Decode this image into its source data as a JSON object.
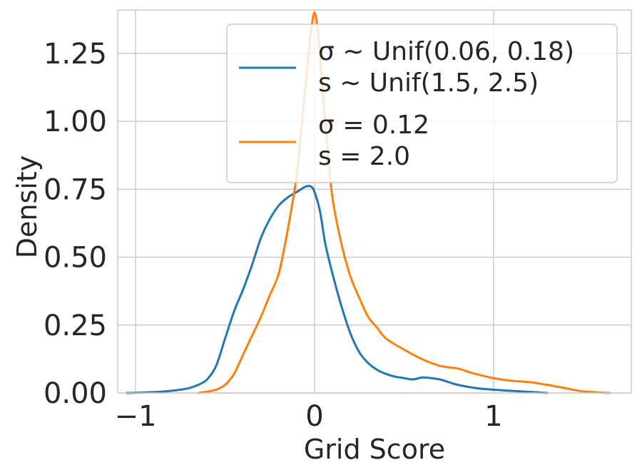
{
  "chart_data": {
    "type": "line",
    "xlabel": "Grid Score",
    "ylabel": "Density",
    "xlim": [
      -1.1,
      1.77
    ],
    "ylim": [
      0,
      1.41
    ],
    "xticks": [
      -1,
      0,
      1
    ],
    "xtick_labels": [
      "−1",
      "0",
      "1"
    ],
    "yticks": [
      0,
      0.25,
      0.5,
      0.75,
      1.0,
      1.25
    ],
    "ytick_labels": [
      "0.00",
      "0.25",
      "0.50",
      "0.75",
      "1.00",
      "1.25"
    ],
    "grid": true,
    "legend": {
      "position": "top-right",
      "entries": [
        {
          "lines": [
            "σ ∼  Unif(0.06, 0.18)",
            "s ∼  Unif(1.5, 2.5)"
          ],
          "color": "#1f77b4"
        },
        {
          "lines": [
            "σ = 0.12",
            "s = 2.0"
          ],
          "color": "#ff7f0e"
        }
      ]
    },
    "series": [
      {
        "color": "#1f77b4",
        "x": [
          -1.05,
          -0.95,
          -0.85,
          -0.75,
          -0.7,
          -0.65,
          -0.6,
          -0.55,
          -0.5,
          -0.45,
          -0.4,
          -0.35,
          -0.3,
          -0.25,
          -0.2,
          -0.15,
          -0.1,
          -0.05,
          -0.02,
          0.0,
          0.03,
          0.06,
          0.1,
          0.15,
          0.2,
          0.25,
          0.3,
          0.35,
          0.4,
          0.45,
          0.5,
          0.55,
          0.6,
          0.65,
          0.7,
          0.75,
          0.8,
          0.9,
          1.0,
          1.1,
          1.2,
          1.3
        ],
        "y": [
          0.0,
          0.002,
          0.005,
          0.012,
          0.018,
          0.03,
          0.05,
          0.1,
          0.2,
          0.3,
          0.38,
          0.47,
          0.57,
          0.64,
          0.69,
          0.72,
          0.74,
          0.76,
          0.76,
          0.74,
          0.67,
          0.55,
          0.44,
          0.32,
          0.22,
          0.15,
          0.11,
          0.085,
          0.07,
          0.06,
          0.055,
          0.05,
          0.057,
          0.055,
          0.05,
          0.04,
          0.03,
          0.018,
          0.012,
          0.008,
          0.004,
          0.0
        ]
      },
      {
        "color": "#ff7f0e",
        "x": [
          -0.65,
          -0.6,
          -0.55,
          -0.5,
          -0.45,
          -0.4,
          -0.35,
          -0.3,
          -0.25,
          -0.2,
          -0.15,
          -0.1,
          -0.07,
          -0.04,
          -0.02,
          0.0,
          0.02,
          0.04,
          0.07,
          0.1,
          0.15,
          0.2,
          0.25,
          0.3,
          0.35,
          0.4,
          0.5,
          0.6,
          0.7,
          0.8,
          0.85,
          0.9,
          1.0,
          1.1,
          1.2,
          1.3,
          1.4,
          1.5,
          1.65
        ],
        "y": [
          0.0,
          0.005,
          0.012,
          0.03,
          0.07,
          0.14,
          0.21,
          0.28,
          0.36,
          0.44,
          0.6,
          0.8,
          1.0,
          1.2,
          1.33,
          1.4,
          1.32,
          1.15,
          0.92,
          0.72,
          0.55,
          0.43,
          0.35,
          0.28,
          0.24,
          0.2,
          0.16,
          0.125,
          0.1,
          0.09,
          0.08,
          0.07,
          0.055,
          0.045,
          0.04,
          0.03,
          0.018,
          0.006,
          0.0
        ]
      }
    ]
  }
}
